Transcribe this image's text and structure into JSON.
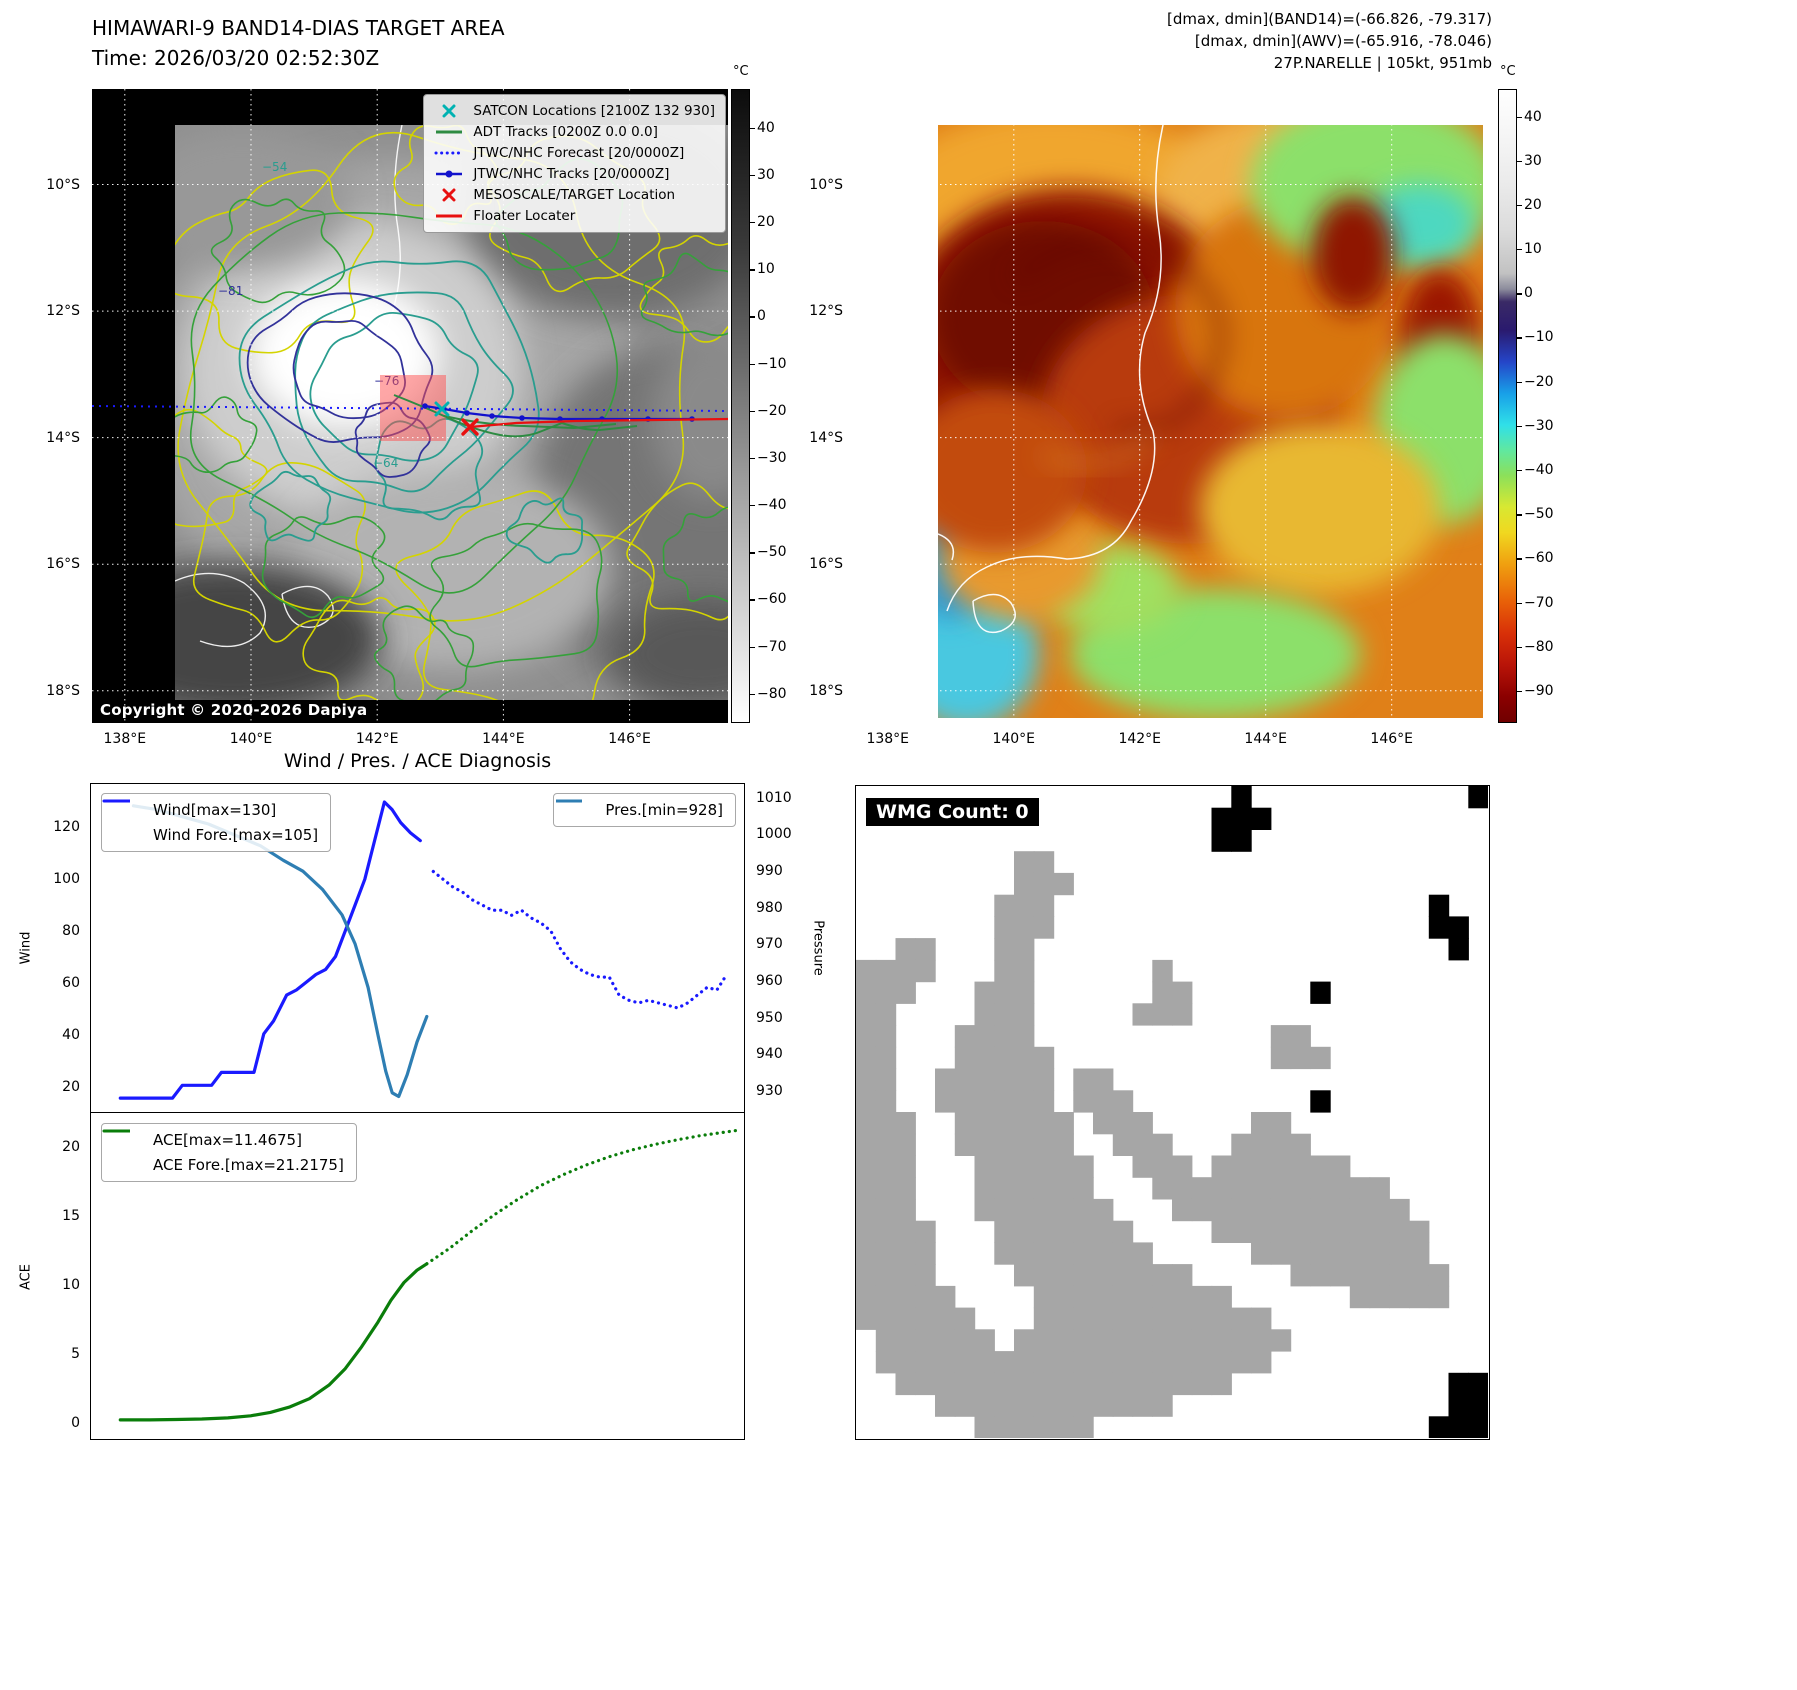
{
  "band14": {
    "title": "HIMAWARI-9 BAND14-DIAS TARGET AREA",
    "time_label": "Time: 2026/03/20 02:52:30Z",
    "copyright": "Copyright © 2020-2026 Dapiya",
    "legend": [
      {
        "label": "SATCON Locations [2100Z 132 930]",
        "marker": "x",
        "color": "#00b2b2"
      },
      {
        "label": "ADT Tracks [0200Z 0.0 0.0]",
        "marker": "line",
        "color": "#2e8b42"
      },
      {
        "label": "JTWC/NHC Forecast [20/0000Z]",
        "marker": "dotted",
        "color": "#1a1aff"
      },
      {
        "label": "JTWC/NHC Tracks [20/0000Z]",
        "marker": "line-dot",
        "color": "#1212cc"
      },
      {
        "label": "MESOSCALE/TARGET Location",
        "marker": "x",
        "color": "#e81010"
      },
      {
        "label": "Floater Locater",
        "marker": "line",
        "color": "#e81010"
      }
    ],
    "contour_labels": [
      {
        "text": "-54",
        "color": "#2a9d8f"
      },
      {
        "text": "-81",
        "color": "#32329a"
      },
      {
        "text": "-76",
        "color": "#32329a"
      },
      {
        "text": "-64",
        "color": "#2a9d8f"
      }
    ],
    "colorbar": {
      "unit": "°C",
      "vmax": 48,
      "vmin": -86,
      "ticks": [
        40,
        30,
        20,
        10,
        0,
        -10,
        -20,
        -30,
        -40,
        -50,
        -60,
        -70,
        -80
      ]
    }
  },
  "awv": {
    "header_lines": [
      "[dmax, dmin](BAND14)=(-66.826, -79.317)",
      "[dmax, dmin](AWV)=(-65.916, -78.046)",
      "27P.NARELLE | 105kt, 951mb"
    ],
    "colorbar": {
      "unit": "°C",
      "vmax": 46,
      "vmin": -97,
      "ticks": [
        40,
        30,
        20,
        10,
        0,
        -10,
        -20,
        -30,
        -40,
        -50,
        -60,
        -70,
        -80,
        -90
      ]
    }
  },
  "geo": {
    "lat_min": 8.49,
    "lat_max": 18.51,
    "lon_min": 137.48,
    "lon_max": 147.56,
    "lat_ticks": [
      10,
      12,
      14,
      16,
      18
    ],
    "lon_ticks": [
      138,
      140,
      142,
      144,
      146
    ],
    "lat_suffix": "°S",
    "lon_suffix": "°E"
  },
  "wmg": {
    "label": "WMG Count: 0",
    "gray": "#a6a6a6",
    "black": "#000000",
    "grid": [
      "...................b...........b",
      "..................bbb...........",
      "..................bb............",
      "........gg......................",
      "........ggg.....................",
      ".......ggg...................b..",
      ".......ggg...................bb.",
      "..gg...gg.....................b.",
      "gggg...gg......g................",
      "ggg...ggg......gg......b........",
      "gg....ggg.....ggg...............",
      "gg...gggg............gg.........",
      "gg...ggggg...........ggg........",
      "gg..gggggg.gg...................",
      "gg..gggggg.ggg.........b........",
      "ggg..gggggg.ggg.....gg..........",
      "ggg..gggggg..ggg...gggg.........",
      "ggg...gggggg..ggg.ggggggg.......",
      "ggg...gggggg...gggggggggggg.....",
      "ggg...ggggggg...gggggggggggg....",
      "gggg...ggggggg....ggggggggggg...",
      "gggg...gggggggg.....ggggggggg...",
      "gggg....ggggggggg.....gggggggg..",
      "ggggg....gggggggggg......ggggg..",
      "gggggg...gggggggggggg...........",
      ".gggggg.gggggggggggggg..........",
      ".gggggggggggggggggggg...........",
      "..ggggggggggggggggg...........bb",
      "....gggggggggggg..............bb",
      "......gggggg.................bbb"
    ]
  },
  "chart_data": [
    {
      "type": "line",
      "title": "Wind / Pres. / ACE Diagnosis",
      "ylabel_left": "Wind",
      "ylabel_right": "Pressure",
      "ylim_left": [
        10,
        137
      ],
      "ylim_right": [
        924,
        1014
      ],
      "yticks_left": [
        20,
        40,
        60,
        80,
        100,
        120
      ],
      "yticks_right": [
        930,
        940,
        950,
        960,
        970,
        980,
        990,
        1000,
        1010
      ],
      "legend_wind": [
        {
          "label": "Wind[max=130]",
          "marker": "line",
          "color": "#1a1aff"
        },
        {
          "label": "Wind Fore.[max=105]",
          "marker": "dotted",
          "color": "#1a1aff"
        }
      ],
      "legend_pres": [
        {
          "label": "Pres.[min=928]",
          "marker": "line",
          "color": "#2e7eb3"
        }
      ],
      "series": [
        {
          "name": "Wind[max=130]",
          "axis": "left",
          "style": "solid",
          "color": "#1a1aff",
          "x": [
            0.045,
            0.075,
            0.105,
            0.125,
            0.14,
            0.155,
            0.17,
            0.185,
            0.2,
            0.215,
            0.23,
            0.25,
            0.265,
            0.28,
            0.3,
            0.315,
            0.33,
            0.345,
            0.36,
            0.375,
            0.39,
            0.405,
            0.42,
            0.435,
            0.45,
            0.462,
            0.475,
            0.49,
            0.505
          ],
          "y": [
            15,
            15,
            15,
            15,
            20,
            20,
            20,
            20,
            25,
            25,
            25,
            25,
            40,
            45,
            55,
            57,
            60,
            63,
            65,
            70,
            80,
            90,
            100,
            115,
            130,
            127,
            122,
            118,
            115
          ]
        },
        {
          "name": "Wind Fore.[max=105]",
          "axis": "left",
          "style": "dotted",
          "color": "#1a1aff",
          "x": [
            0.525,
            0.54,
            0.555,
            0.57,
            0.585,
            0.6,
            0.615,
            0.63,
            0.645,
            0.66,
            0.675,
            0.69,
            0.705,
            0.72,
            0.735,
            0.75,
            0.765,
            0.78,
            0.795,
            0.81,
            0.825,
            0.84,
            0.855,
            0.87,
            0.885,
            0.9,
            0.915,
            0.93,
            0.945,
            0.96,
            0.975
          ],
          "y": [
            103,
            100,
            97,
            95,
            92,
            90,
            88,
            88,
            86,
            88,
            85,
            83,
            80,
            73,
            68,
            65,
            63,
            62,
            62,
            55,
            53,
            52,
            53,
            52,
            51,
            50,
            52,
            55,
            58,
            57,
            63
          ]
        },
        {
          "name": "Pres.[min=928]",
          "axis": "right",
          "style": "solid",
          "color": "#2e7eb3",
          "x": [
            0.065,
            0.1,
            0.14,
            0.18,
            0.22,
            0.26,
            0.295,
            0.325,
            0.355,
            0.385,
            0.405,
            0.425,
            0.44,
            0.452,
            0.462,
            0.472,
            0.485,
            0.5,
            0.515
          ],
          "y": [
            1008,
            1007,
            1005,
            1003,
            1000,
            997,
            993,
            990,
            985,
            978,
            970,
            958,
            945,
            935,
            929,
            928,
            934,
            943,
            950
          ]
        }
      ]
    },
    {
      "type": "line",
      "ylabel_left": "ACE",
      "ylim_left": [
        -1.2,
        22.5
      ],
      "yticks_left": [
        0,
        5,
        10,
        15,
        20
      ],
      "legend_ace": [
        {
          "label": "ACE[max=11.4675]",
          "marker": "line",
          "color": "#0a7d0a"
        },
        {
          "label": "ACE Fore.[max=21.2175]",
          "marker": "dotted",
          "color": "#0a7d0a"
        }
      ],
      "series": [
        {
          "name": "ACE[max=11.4675]",
          "axis": "left",
          "style": "solid",
          "color": "#0a7d0a",
          "x": [
            0.045,
            0.09,
            0.13,
            0.17,
            0.21,
            0.245,
            0.275,
            0.305,
            0.335,
            0.365,
            0.39,
            0.415,
            0.44,
            0.46,
            0.48,
            0.5,
            0.515
          ],
          "y": [
            0.05,
            0.05,
            0.08,
            0.12,
            0.2,
            0.35,
            0.6,
            1.0,
            1.6,
            2.6,
            3.8,
            5.4,
            7.2,
            8.8,
            10.1,
            11.0,
            11.4675
          ]
        },
        {
          "name": "ACE Fore.[max=21.2175]",
          "axis": "left",
          "style": "dotted",
          "color": "#0a7d0a",
          "x": [
            0.515,
            0.55,
            0.585,
            0.62,
            0.655,
            0.69,
            0.725,
            0.76,
            0.795,
            0.83,
            0.865,
            0.9,
            0.935,
            0.965,
            0.99
          ],
          "y": [
            11.4675,
            12.6,
            13.9,
            15.1,
            16.2,
            17.2,
            18.0,
            18.7,
            19.3,
            19.8,
            20.2,
            20.55,
            20.85,
            21.05,
            21.2175
          ]
        }
      ]
    }
  ]
}
